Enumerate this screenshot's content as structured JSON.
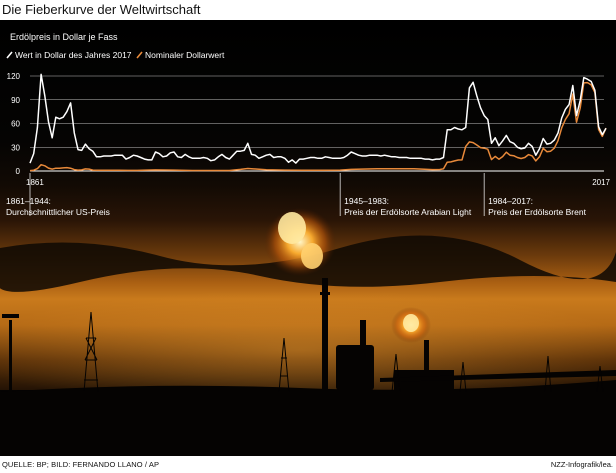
{
  "title": "Die Fieberkurve der Weltwirtschaft",
  "chart_data": {
    "type": "line",
    "subtitle": "Erdölpreis in Dollar je Fass",
    "xlim": [
      1861,
      2017
    ],
    "ylim": [
      0,
      120
    ],
    "yticks": [
      0,
      30,
      60,
      90,
      120
    ],
    "x_tick_labels": [
      "1861",
      "2017"
    ],
    "series": [
      {
        "name": "Wert in Dollar des Jahres 2017",
        "color": "#ffffff",
        "points": [
          [
            1861,
            10
          ],
          [
            1862,
            22
          ],
          [
            1863,
            55
          ],
          [
            1864,
            122
          ],
          [
            1865,
            95
          ],
          [
            1866,
            62
          ],
          [
            1867,
            42
          ],
          [
            1868,
            68
          ],
          [
            1869,
            66
          ],
          [
            1870,
            68
          ],
          [
            1871,
            75
          ],
          [
            1872,
            86
          ],
          [
            1873,
            48
          ],
          [
            1874,
            27
          ],
          [
            1875,
            26
          ],
          [
            1876,
            34
          ],
          [
            1877,
            28
          ],
          [
            1878,
            25
          ],
          [
            1879,
            18
          ],
          [
            1880,
            18
          ],
          [
            1881,
            19
          ],
          [
            1882,
            19
          ],
          [
            1883,
            19
          ],
          [
            1884,
            20
          ],
          [
            1885,
            20
          ],
          [
            1886,
            20
          ],
          [
            1887,
            15
          ],
          [
            1888,
            17
          ],
          [
            1889,
            20
          ],
          [
            1890,
            19
          ],
          [
            1891,
            17
          ],
          [
            1892,
            15
          ],
          [
            1893,
            14
          ],
          [
            1894,
            14
          ],
          [
            1895,
            24
          ],
          [
            1896,
            22
          ],
          [
            1897,
            18
          ],
          [
            1898,
            19
          ],
          [
            1899,
            23
          ],
          [
            1900,
            24
          ],
          [
            1901,
            18
          ],
          [
            1902,
            17
          ],
          [
            1903,
            21
          ],
          [
            1904,
            18
          ],
          [
            1905,
            16
          ],
          [
            1906,
            16
          ],
          [
            1907,
            16
          ],
          [
            1908,
            17
          ],
          [
            1909,
            16
          ],
          [
            1910,
            13
          ],
          [
            1911,
            14
          ],
          [
            1912,
            18
          ],
          [
            1913,
            21
          ],
          [
            1914,
            17
          ],
          [
            1915,
            15
          ],
          [
            1916,
            20
          ],
          [
            1917,
            25
          ],
          [
            1918,
            25
          ],
          [
            1919,
            26
          ],
          [
            1920,
            35
          ],
          [
            1921,
            21
          ],
          [
            1922,
            20
          ],
          [
            1923,
            16
          ],
          [
            1924,
            18
          ],
          [
            1925,
            20
          ],
          [
            1926,
            21
          ],
          [
            1927,
            17
          ],
          [
            1928,
            18
          ],
          [
            1929,
            18
          ],
          [
            1930,
            16
          ],
          [
            1931,
            11
          ],
          [
            1932,
            14
          ],
          [
            1933,
            10
          ],
          [
            1934,
            15
          ],
          [
            1935,
            15
          ],
          [
            1936,
            16
          ],
          [
            1937,
            17
          ],
          [
            1938,
            17
          ],
          [
            1939,
            16
          ],
          [
            1940,
            16
          ],
          [
            1941,
            18
          ],
          [
            1942,
            17
          ],
          [
            1943,
            16
          ],
          [
            1944,
            16
          ],
          [
            1945,
            16
          ],
          [
            1946,
            17
          ],
          [
            1947,
            20
          ],
          [
            1948,
            24
          ],
          [
            1949,
            22
          ],
          [
            1950,
            20
          ],
          [
            1951,
            19
          ],
          [
            1952,
            19
          ],
          [
            1953,
            20
          ],
          [
            1954,
            20
          ],
          [
            1955,
            20
          ],
          [
            1956,
            19
          ],
          [
            1957,
            20
          ],
          [
            1958,
            19
          ],
          [
            1959,
            18
          ],
          [
            1960,
            18
          ],
          [
            1961,
            17
          ],
          [
            1962,
            17
          ],
          [
            1963,
            17
          ],
          [
            1964,
            16
          ],
          [
            1965,
            16
          ],
          [
            1966,
            16
          ],
          [
            1967,
            16
          ],
          [
            1968,
            15
          ],
          [
            1969,
            15
          ],
          [
            1970,
            14
          ],
          [
            1971,
            15
          ],
          [
            1972,
            15
          ],
          [
            1973,
            17
          ],
          [
            1974,
            52
          ],
          [
            1975,
            52
          ],
          [
            1976,
            55
          ],
          [
            1977,
            53
          ],
          [
            1978,
            52
          ],
          [
            1979,
            55
          ],
          [
            1980,
            105
          ],
          [
            1981,
            112
          ],
          [
            1982,
            95
          ],
          [
            1983,
            80
          ],
          [
            1984,
            70
          ],
          [
            1985,
            65
          ],
          [
            1986,
            35
          ],
          [
            1987,
            42
          ],
          [
            1988,
            32
          ],
          [
            1989,
            38
          ],
          [
            1990,
            45
          ],
          [
            1991,
            37
          ],
          [
            1992,
            35
          ],
          [
            1993,
            30
          ],
          [
            1994,
            28
          ],
          [
            1995,
            29
          ],
          [
            1996,
            35
          ],
          [
            1997,
            31
          ],
          [
            1998,
            20
          ],
          [
            1999,
            28
          ],
          [
            2000,
            41
          ],
          [
            2001,
            34
          ],
          [
            2002,
            35
          ],
          [
            2003,
            39
          ],
          [
            2004,
            48
          ],
          [
            2005,
            67
          ],
          [
            2006,
            78
          ],
          [
            2007,
            84
          ],
          [
            2008,
            108
          ],
          [
            2009,
            70
          ],
          [
            2010,
            89
          ],
          [
            2011,
            118
          ],
          [
            2012,
            116
          ],
          [
            2013,
            113
          ],
          [
            2014,
            102
          ],
          [
            2015,
            56
          ],
          [
            2016,
            46
          ],
          [
            2017,
            54
          ]
        ]
      },
      {
        "name": "Nominaler Dollarwert",
        "color": "#e8893a",
        "points": [
          [
            1861,
            0.5
          ],
          [
            1862,
            1
          ],
          [
            1863,
            3
          ],
          [
            1864,
            8
          ],
          [
            1865,
            6.6
          ],
          [
            1866,
            3.7
          ],
          [
            1867,
            2.4
          ],
          [
            1868,
            3.6
          ],
          [
            1869,
            3.6
          ],
          [
            1870,
            3.9
          ],
          [
            1871,
            4.3
          ],
          [
            1872,
            3.6
          ],
          [
            1873,
            1.8
          ],
          [
            1874,
            1.2
          ],
          [
            1875,
            1.4
          ],
          [
            1876,
            2.6
          ],
          [
            1877,
            2.4
          ],
          [
            1878,
            1.2
          ],
          [
            1879,
            0.9
          ],
          [
            1880,
            0.9
          ],
          [
            1885,
            0.9
          ],
          [
            1890,
            0.8
          ],
          [
            1895,
            1.4
          ],
          [
            1900,
            1.2
          ],
          [
            1905,
            0.6
          ],
          [
            1910,
            0.6
          ],
          [
            1915,
            0.6
          ],
          [
            1918,
            2
          ],
          [
            1920,
            3.1
          ],
          [
            1925,
            1.7
          ],
          [
            1930,
            1.2
          ],
          [
            1935,
            1
          ],
          [
            1940,
            1
          ],
          [
            1945,
            1.2
          ],
          [
            1948,
            2
          ],
          [
            1955,
            2.8
          ],
          [
            1960,
            2.9
          ],
          [
            1965,
            2.9
          ],
          [
            1970,
            1.8
          ],
          [
            1972,
            1.9
          ],
          [
            1973,
            2.8
          ],
          [
            1974,
            11
          ],
          [
            1975,
            11.5
          ],
          [
            1976,
            12.8
          ],
          [
            1977,
            13.9
          ],
          [
            1978,
            14
          ],
          [
            1979,
            31
          ],
          [
            1980,
            36.8
          ],
          [
            1981,
            35.9
          ],
          [
            1982,
            32.9
          ],
          [
            1983,
            29.5
          ],
          [
            1984,
            28.8
          ],
          [
            1985,
            27.6
          ],
          [
            1986,
            14.4
          ],
          [
            1987,
            18.4
          ],
          [
            1988,
            14.9
          ],
          [
            1989,
            18.2
          ],
          [
            1990,
            23.7
          ],
          [
            1991,
            20
          ],
          [
            1992,
            19.3
          ],
          [
            1993,
            17
          ],
          [
            1994,
            15.8
          ],
          [
            1995,
            17
          ],
          [
            1996,
            20.7
          ],
          [
            1997,
            19.1
          ],
          [
            1998,
            12.7
          ],
          [
            1999,
            17.9
          ],
          [
            2000,
            28.7
          ],
          [
            2001,
            24.4
          ],
          [
            2002,
            25
          ],
          [
            2003,
            28.8
          ],
          [
            2004,
            38.3
          ],
          [
            2005,
            54.5
          ],
          [
            2006,
            65.1
          ],
          [
            2007,
            72.4
          ],
          [
            2008,
            97.3
          ],
          [
            2009,
            61.7
          ],
          [
            2010,
            79.5
          ],
          [
            2011,
            111.3
          ],
          [
            2012,
            111.7
          ],
          [
            2013,
            108.7
          ],
          [
            2014,
            99
          ],
          [
            2015,
            52.4
          ],
          [
            2016,
            43.7
          ],
          [
            2017,
            54.2
          ]
        ]
      }
    ],
    "eras": [
      {
        "start": 1861,
        "period": "1861–1944:",
        "label": "Durchschnittlicher US-Preis"
      },
      {
        "start": 1945,
        "period": "1945–1983:",
        "label": "Preis der Erdölsorte Arabian Light"
      },
      {
        "start": 1984,
        "period": "1984–2017:",
        "label": "Preis der Erdölsorte Brent"
      }
    ]
  },
  "footer": {
    "source": "Quelle: BP; Bild: Fernando Llano / AP",
    "credit": "NZZ-Infografik/lea."
  }
}
